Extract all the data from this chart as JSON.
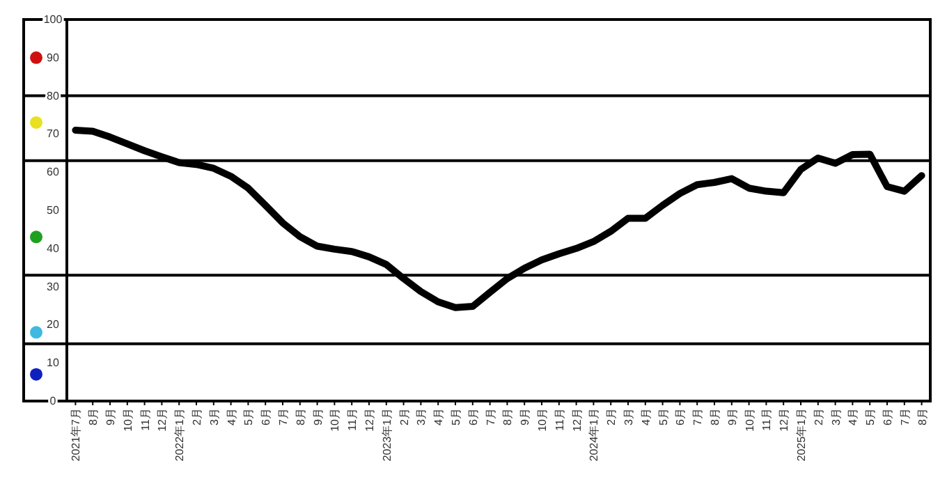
{
  "chart_data": {
    "type": "line",
    "categories": [
      "2021年7月",
      "8月",
      "9月",
      "10月",
      "11月",
      "12月",
      "2022年1月",
      "2月",
      "3月",
      "4月",
      "5月",
      "6月",
      "7月",
      "8月",
      "9月",
      "10月",
      "11月",
      "12月",
      "2023年1月",
      "2月",
      "3月",
      "4月",
      "5月",
      "6月",
      "7月",
      "8月",
      "9月",
      "10月",
      "11月",
      "12月",
      "2024年1月",
      "2月",
      "3月",
      "4月",
      "5月",
      "6月",
      "7月",
      "8月",
      "9月",
      "10月",
      "11月",
      "12月",
      "2025年1月",
      "2月",
      "3月",
      "4月",
      "5月",
      "6月",
      "7月",
      "8月"
    ],
    "series": [
      {
        "color": "#000000",
        "values": [
          71,
          70.7,
          69.2,
          67.4,
          65.6,
          64,
          62.5,
          62,
          61,
          58.9,
          55.8,
          51.3,
          46.7,
          43.1,
          40.6,
          39.8,
          39.2,
          37.8,
          35.8,
          32.1,
          28.7,
          26,
          24.5,
          24.8,
          28.5,
          32.1,
          34.8,
          37,
          38.6,
          40,
          41.8,
          44.5,
          47.9,
          47.9,
          51.3,
          54.4,
          56.7,
          57.3,
          58.3,
          55.8,
          55,
          54.6,
          60.7,
          63.7,
          62.3,
          64.6,
          64.7,
          56.2,
          55,
          59.1
        ]
      }
    ],
    "ylim": [
      0,
      100
    ],
    "yticks": [
      0,
      10,
      20,
      30,
      40,
      50,
      60,
      70,
      80,
      90,
      100
    ],
    "ref_lines": [
      {
        "axis": "y",
        "value": 80,
        "color": "#000000"
      },
      {
        "axis": "y",
        "value": 63,
        "color": "#000000"
      },
      {
        "axis": "y",
        "value": 33,
        "color": "#000000"
      },
      {
        "axis": "y",
        "value": 15,
        "color": "#000000"
      }
    ],
    "marker": "none",
    "line_style": "solid",
    "grid": false
  }
}
